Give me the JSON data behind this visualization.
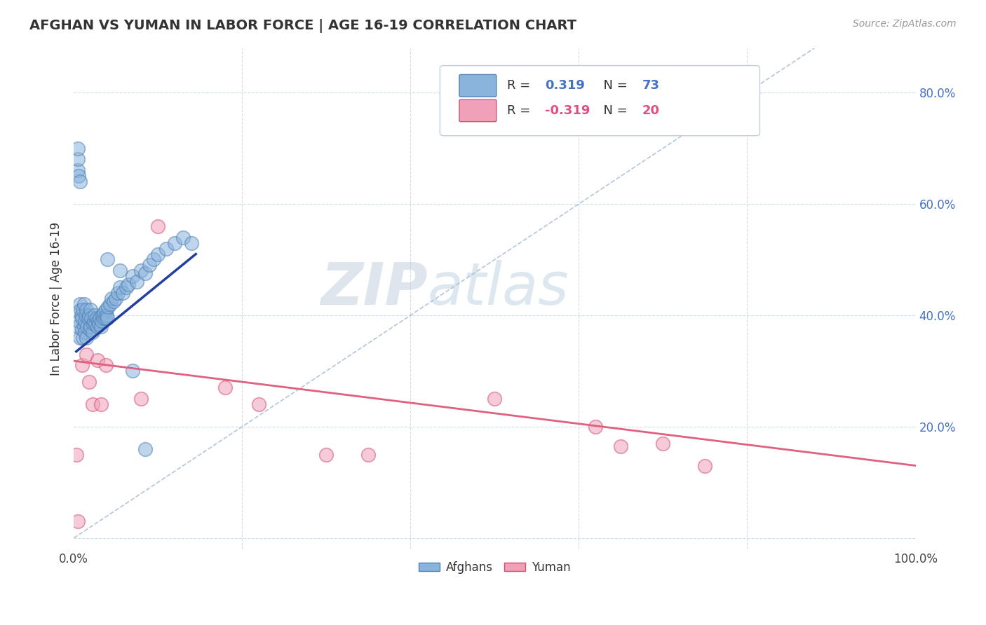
{
  "title": "AFGHAN VS YUMAN IN LABOR FORCE | AGE 16-19 CORRELATION CHART",
  "source": "Source: ZipAtlas.com",
  "ylabel": "In Labor Force | Age 16-19",
  "xlim": [
    0.0,
    1.0
  ],
  "ylim": [
    -0.02,
    0.88
  ],
  "xtick_positions": [
    0.0,
    0.1,
    0.2,
    0.3,
    0.4,
    0.5,
    0.6,
    0.7,
    0.8,
    0.9,
    1.0
  ],
  "ytick_positions": [
    0.0,
    0.2,
    0.4,
    0.6,
    0.8
  ],
  "xtick_labels_show": {
    "0.0": "0.0%",
    "1.0": "100.0%"
  },
  "ytick_right_labels": [
    "",
    "20.0%",
    "40.0%",
    "60.0%",
    "80.0%"
  ],
  "grid_color": "#d0dce8",
  "diag_color": "#a0b8d0",
  "afghan_dot_color": "#8ab4dc",
  "afghan_dot_edge": "#5080b8",
  "yuman_dot_color": "#f0a0b8",
  "yuman_dot_edge": "#d05070",
  "afghan_line_color": "#2040a0",
  "yuman_line_color": "#e06080",
  "bg_color": "#ffffff",
  "watermark_color": "#c8d8e8",
  "legend_box_color": "#f0f4f8",
  "legend_border_color": "#c0ccd8",
  "afghan_r": "0.319",
  "afghan_n": "73",
  "yuman_r": "-0.319",
  "yuman_n": "20",
  "afghan_scatter_x": [
    0.005,
    0.006,
    0.007,
    0.007,
    0.008,
    0.009,
    0.01,
    0.01,
    0.011,
    0.011,
    0.012,
    0.012,
    0.013,
    0.013,
    0.014,
    0.015,
    0.015,
    0.016,
    0.017,
    0.018,
    0.019,
    0.02,
    0.02,
    0.021,
    0.022,
    0.023,
    0.024,
    0.025,
    0.026,
    0.027,
    0.028,
    0.029,
    0.03,
    0.031,
    0.032,
    0.033,
    0.034,
    0.035,
    0.036,
    0.037,
    0.038,
    0.039,
    0.04,
    0.041,
    0.043,
    0.045,
    0.047,
    0.05,
    0.052,
    0.055,
    0.058,
    0.062,
    0.065,
    0.07,
    0.075,
    0.08,
    0.085,
    0.09,
    0.095,
    0.1,
    0.11,
    0.12,
    0.13,
    0.14,
    0.04,
    0.055,
    0.07,
    0.085,
    0.005,
    0.005,
    0.005,
    0.006,
    0.007
  ],
  "afghan_scatter_y": [
    0.38,
    0.39,
    0.36,
    0.42,
    0.41,
    0.4,
    0.375,
    0.395,
    0.36,
    0.41,
    0.38,
    0.42,
    0.37,
    0.39,
    0.4,
    0.36,
    0.41,
    0.38,
    0.395,
    0.4,
    0.375,
    0.38,
    0.41,
    0.395,
    0.37,
    0.385,
    0.39,
    0.4,
    0.385,
    0.395,
    0.38,
    0.39,
    0.385,
    0.395,
    0.38,
    0.39,
    0.4,
    0.395,
    0.405,
    0.395,
    0.41,
    0.4,
    0.395,
    0.415,
    0.42,
    0.43,
    0.425,
    0.43,
    0.44,
    0.45,
    0.44,
    0.45,
    0.455,
    0.47,
    0.46,
    0.48,
    0.475,
    0.49,
    0.5,
    0.51,
    0.52,
    0.53,
    0.54,
    0.53,
    0.5,
    0.48,
    0.3,
    0.16,
    0.66,
    0.68,
    0.7,
    0.65,
    0.64
  ],
  "yuman_scatter_x": [
    0.005,
    0.01,
    0.015,
    0.018,
    0.022,
    0.028,
    0.032,
    0.038,
    0.08,
    0.1,
    0.18,
    0.22,
    0.3,
    0.35,
    0.5,
    0.62,
    0.65,
    0.7,
    0.75,
    0.003
  ],
  "yuman_scatter_y": [
    0.03,
    0.31,
    0.33,
    0.28,
    0.24,
    0.32,
    0.24,
    0.31,
    0.25,
    0.56,
    0.27,
    0.24,
    0.15,
    0.15,
    0.25,
    0.2,
    0.165,
    0.17,
    0.13,
    0.15
  ],
  "afghan_line_x": [
    0.003,
    0.145
  ],
  "afghan_line_y": [
    0.335,
    0.51
  ],
  "yuman_line_x": [
    0.0,
    1.0
  ],
  "yuman_line_y": [
    0.318,
    0.13
  ],
  "diag_line_x": [
    0.0,
    0.88
  ],
  "diag_line_y": [
    0.0,
    0.88
  ]
}
